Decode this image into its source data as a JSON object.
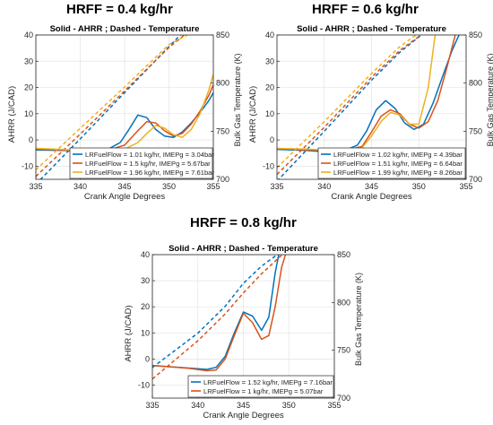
{
  "panel_headers": [
    "HRFF = 0.4 kg/hr",
    "HRFF = 0.6 kg/hr",
    "HRFF = 0.8 kg/hr"
  ],
  "chart_data": [
    {
      "type": "line",
      "title": "Solid - AHRR ; Dashed - Temperature",
      "xlabel": "Crank Angle Degrees",
      "ylabel": "AHRR (J/CAD)",
      "ylabel_right": "Bulk Gas Temperature (K)",
      "xlim": [
        335,
        355
      ],
      "ylim": [
        -15,
        40
      ],
      "ylim_right": [
        700,
        850
      ],
      "xticks": [
        335,
        340,
        345,
        350,
        355
      ],
      "yticks": [
        -10,
        0,
        10,
        20,
        30,
        40
      ],
      "yticks_right": [
        700,
        750,
        800,
        850
      ],
      "grid": true,
      "legend_position": "bottom-right",
      "series": [
        {
          "name": "LRFuelFlow = 1.01 kg/hr, IMEPg = 3.04bar",
          "color": "#0072BD",
          "ahrr": {
            "x": [
              335,
              338,
              341,
              343,
              344.5,
              345.5,
              346.5,
              347.5,
              348.5,
              349.5,
              350.5,
              351.5,
              352.5,
              353.5,
              354.5,
              355
            ],
            "y": [
              -3.8,
              -4,
              -4.3,
              -3.8,
              -1,
              4,
              9.5,
              8.5,
              4,
              1.5,
              1,
              3,
              6.5,
              10.5,
              15,
              18
            ]
          },
          "temperature": {
            "x": [
              335,
              340,
              345,
              350,
              351.5
            ],
            "y": [
              695,
              742,
              790,
              838,
              852
            ]
          }
        },
        {
          "name": "LRFuelFlow = 1.5 kg/hr, IMEPg = 5.67bar",
          "color": "#D95319",
          "ahrr": {
            "x": [
              335,
              338,
              341,
              343,
              345,
              346.5,
              347.5,
              348.5,
              349.5,
              350.5,
              351.5,
              352.5,
              353.5,
              354.5,
              355
            ],
            "y": [
              -3.5,
              -3.8,
              -4,
              -4,
              -2,
              3.5,
              7,
              6.5,
              3.5,
              1.5,
              2.5,
              6,
              11,
              17,
              21
            ]
          },
          "temperature": {
            "x": [
              335,
              340,
              345,
              350,
              352
            ],
            "y": [
              703,
              747,
              792,
              837,
              852
            ]
          }
        },
        {
          "name": "LRFuelFlow = 1.96 kg/hr, IMEPg = 7.61bar",
          "color": "#EDB120",
          "ahrr": {
            "x": [
              335,
              338,
              341,
              343,
              345,
              346.5,
              347.5,
              348.5,
              349.5,
              350.5,
              351.5,
              352.5,
              353.5,
              354.5,
              355
            ],
            "y": [
              -3.2,
              -3.6,
              -4.3,
              -4.6,
              -3.5,
              -1,
              2.5,
              5.5,
              4.5,
              2,
              1,
              4,
              10,
              19,
              25
            ]
          },
          "temperature": {
            "x": [
              335,
              340,
              345,
              350,
              352.5
            ],
            "y": [
              710,
              753,
              796,
              840,
              852
            ]
          }
        }
      ]
    },
    {
      "type": "line",
      "title": "Solid - AHRR ; Dashed - Temperature",
      "xlabel": "Crank Angle Degrees",
      "ylabel": "AHRR (J/CAD)",
      "ylabel_right": "Bulk Gas Temperature (K)",
      "xlim": [
        335,
        355
      ],
      "ylim": [
        -15,
        40
      ],
      "ylim_right": [
        700,
        850
      ],
      "xticks": [
        335,
        340,
        345,
        350,
        355
      ],
      "yticks": [
        -10,
        0,
        10,
        20,
        30,
        40
      ],
      "yticks_right": [
        700,
        750,
        800,
        850
      ],
      "grid": true,
      "legend_position": "bottom-right",
      "series": [
        {
          "name": "LRFuelFlow = 1.02 kg/hr, IMEPg = 4.39bar",
          "color": "#0072BD",
          "ahrr": {
            "x": [
              335,
              338,
              340,
              342,
              343.5,
              344.5,
              345.5,
              346.5,
              347.5,
              348.5,
              349.5,
              350.5,
              351.5,
              352.5,
              353.5,
              354.5
            ],
            "y": [
              -3.6,
              -4,
              -4.5,
              -4.2,
              -2,
              3.5,
              11.5,
              15,
              12,
              6.5,
              4,
              6,
              14,
              24,
              34,
              42
            ]
          },
          "temperature": {
            "x": [
              335,
              340,
              345,
              348,
              350.5
            ],
            "y": [
              698,
              750,
              803,
              832,
              852
            ]
          }
        },
        {
          "name": "LRFuelFlow = 1.51 kg/hr, IMEPg = 6.64bar",
          "color": "#D95319",
          "ahrr": {
            "x": [
              335,
              338,
              340,
              342,
              344,
              345,
              346,
              347,
              348,
              349,
              350,
              351,
              352,
              353,
              354
            ],
            "y": [
              -3.2,
              -3.8,
              -4,
              -4.2,
              -2.5,
              3,
              9,
              11.5,
              10,
              6,
              4.5,
              7,
              15,
              28,
              42
            ]
          },
          "temperature": {
            "x": [
              335,
              340,
              345,
              348,
              350.5
            ],
            "y": [
              705,
              754,
              806,
              834,
              852
            ]
          }
        },
        {
          "name": "LRFuelFlow = 1.99 kg/hr, IMEPg = 8.26bar",
          "color": "#EDB120",
          "ahrr": {
            "x": [
              335,
              338,
              340,
              342,
              344,
              345,
              346,
              347,
              348,
              349,
              350,
              351,
              351.8
            ],
            "y": [
              -3.2,
              -3.5,
              -3.8,
              -4,
              -3,
              1.5,
              7,
              10.5,
              9.5,
              6,
              6,
              20,
              42
            ]
          },
          "temperature": {
            "x": [
              335,
              340,
              345,
              348,
              350
            ],
            "y": [
              712,
              760,
              810,
              838,
              852
            ]
          }
        }
      ]
    },
    {
      "type": "line",
      "title": "Solid - AHRR ; Dashed - Temperature",
      "xlabel": "Crank Angle Degrees",
      "ylabel": "AHRR (J/CAD)",
      "ylabel_right": "Bulk Gas Temperature (K)",
      "xlim": [
        335,
        355
      ],
      "ylim": [
        -15,
        40
      ],
      "ylim_right": [
        700,
        850
      ],
      "xticks": [
        335,
        340,
        345,
        350,
        355
      ],
      "yticks": [
        -10,
        0,
        10,
        20,
        30,
        40
      ],
      "yticks_right": [
        700,
        750,
        800,
        850
      ],
      "grid": true,
      "legend_position": "bottom-right",
      "series": [
        {
          "name": "LRFuelFlow = 1.52 kg/hr, IMEPg = 7.16bar",
          "color": "#0072BD",
          "ahrr": {
            "x": [
              335,
              337,
              339,
              341,
              342,
              343,
              344,
              345,
              346,
              347,
              347.8,
              348.5,
              349
            ],
            "y": [
              -2.5,
              -3,
              -3.5,
              -4,
              -3.2,
              1,
              10,
              18,
              16.5,
              11,
              16,
              33,
              42
            ]
          },
          "temperature": {
            "x": [
              335,
              340,
              343,
              345,
              347,
              349
            ],
            "y": [
              732,
              768,
              796,
              820,
              838,
              852
            ]
          }
        },
        {
          "name": "LRFuelFlow = 1 kg/hr, IMEPg = 5.07bar",
          "color": "#D95319",
          "ahrr": {
            "x": [
              335,
              337,
              339,
              341,
              342,
              343,
              344,
              345,
              346,
              347,
              347.8,
              348.5,
              349.2,
              349.8
            ],
            "y": [
              -2.5,
              -3,
              -3.6,
              -4.5,
              -4.2,
              0,
              9,
              17.5,
              14,
              7.5,
              9,
              20,
              35,
              42
            ]
          },
          "temperature": {
            "x": [
              335,
              340,
              343,
              345,
              347,
              349.5
            ],
            "y": [
              720,
              760,
              788,
              810,
              830,
              852
            ]
          }
        }
      ]
    }
  ]
}
